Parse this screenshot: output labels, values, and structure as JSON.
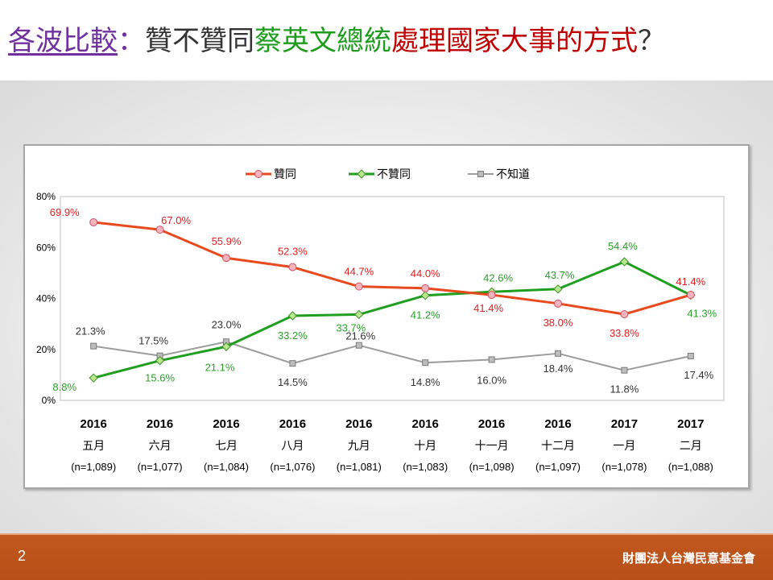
{
  "title": {
    "part1": "各波比較",
    "colon": "：",
    "part2": "贊不贊同",
    "part3": "蔡英文總統",
    "part4": "處理國家大事的方式",
    "part5": "？"
  },
  "footer": {
    "page_number": "2",
    "organization": "財團法人台灣民意基金會"
  },
  "colors": {
    "approve": "#e8491d",
    "disapprove": "#1f9e1f",
    "unknown": "#9c9c9c",
    "approve_label": "#e02020",
    "disapprove_label": "#2aa02a",
    "unknown_label": "#333333"
  },
  "chart_data": {
    "type": "line",
    "categories": [
      {
        "year": "2016",
        "month": "五月",
        "n": "(n=1,089)"
      },
      {
        "year": "2016",
        "month": "六月",
        "n": "(n=1,077)"
      },
      {
        "year": "2016",
        "month": "七月",
        "n": "(n=1,084)"
      },
      {
        "year": "2016",
        "month": "八月",
        "n": "(n=1,076)"
      },
      {
        "year": "2016",
        "month": "九月",
        "n": "(n=1,081)"
      },
      {
        "year": "2016",
        "month": "十月",
        "n": "(n=1,083)"
      },
      {
        "year": "2016",
        "month": "十一月",
        "n": "(n=1,098)"
      },
      {
        "year": "2016",
        "month": "十二月",
        "n": "(n=1,097)"
      },
      {
        "year": "2017",
        "month": "一月",
        "n": "(n=1,078)"
      },
      {
        "year": "2017",
        "month": "二月",
        "n": "(n=1,088)"
      }
    ],
    "series": [
      {
        "name": "贊同",
        "key": "approve",
        "marker": "circle",
        "values": [
          69.9,
          67.0,
          55.9,
          52.3,
          44.7,
          44.0,
          41.4,
          38.0,
          33.8,
          41.4
        ],
        "labels": [
          "69.9%",
          "67.0%",
          "55.9%",
          "52.3%",
          "44.7%",
          "44.0%",
          "41.4%",
          "38.0%",
          "33.8%",
          "41.4%"
        ]
      },
      {
        "name": "不贊同",
        "key": "disapprove",
        "marker": "diamond",
        "values": [
          8.8,
          15.6,
          21.1,
          33.2,
          33.7,
          41.2,
          42.6,
          43.7,
          54.4,
          41.3
        ],
        "labels": [
          "8.8%",
          "15.6%",
          "21.1%",
          "33.2%",
          "33.7%",
          "41.2%",
          "42.6%",
          "43.7%",
          "54.4%",
          "41.3%"
        ]
      },
      {
        "name": "不知道",
        "key": "unknown",
        "marker": "square",
        "values": [
          21.3,
          17.5,
          23.0,
          14.5,
          21.6,
          14.8,
          16.0,
          18.4,
          11.8,
          17.4
        ],
        "labels": [
          "21.3%",
          "17.5%",
          "23.0%",
          "14.5%",
          "21.6%",
          "14.8%",
          "16.0%",
          "18.4%",
          "11.8%",
          "17.4%"
        ]
      }
    ],
    "y_ticks": [
      "0%",
      "20%",
      "40%",
      "60%",
      "80%"
    ],
    "ylim": [
      0,
      80
    ],
    "grid": false,
    "legend_position": "top"
  }
}
